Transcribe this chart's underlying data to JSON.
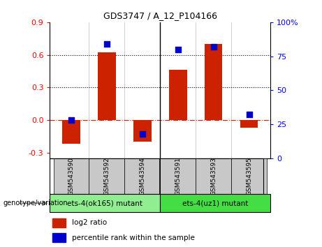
{
  "title": "GDS3747 / A_12_P104166",
  "samples": [
    "GSM543590",
    "GSM543592",
    "GSM543594",
    "GSM543591",
    "GSM543593",
    "GSM543595"
  ],
  "log2_ratios": [
    -0.22,
    0.62,
    -0.2,
    0.46,
    0.7,
    -0.07
  ],
  "percentile_ranks": [
    28,
    84,
    18,
    80,
    82,
    32
  ],
  "group1_label": "ets-4(ok165) mutant",
  "group2_label": "ets-4(uz1) mutant",
  "group1_color": "#90EE90",
  "group2_color": "#44DD44",
  "bar_color": "#CC2200",
  "dot_color": "#0000CC",
  "bg_color": "#FFFFFF",
  "outer_bg": "#FFFFFF",
  "ylim_left": [
    -0.35,
    0.9
  ],
  "ylim_right": [
    0,
    100
  ],
  "yticks_left": [
    -0.3,
    0.0,
    0.3,
    0.6,
    0.9
  ],
  "yticks_right": [
    0,
    25,
    50,
    75,
    100
  ],
  "ytick_labels_right": [
    "0",
    "25",
    "50",
    "75",
    "100%"
  ],
  "hlines": [
    0.3,
    0.6
  ],
  "zero_line_y": 0.0,
  "legend_log2": "log2 ratio",
  "legend_pct": "percentile rank within the sample",
  "bar_width": 0.5,
  "dot_size": 40,
  "sample_box_color": "#C8C8C8",
  "genotype_label": "genotype/variation"
}
